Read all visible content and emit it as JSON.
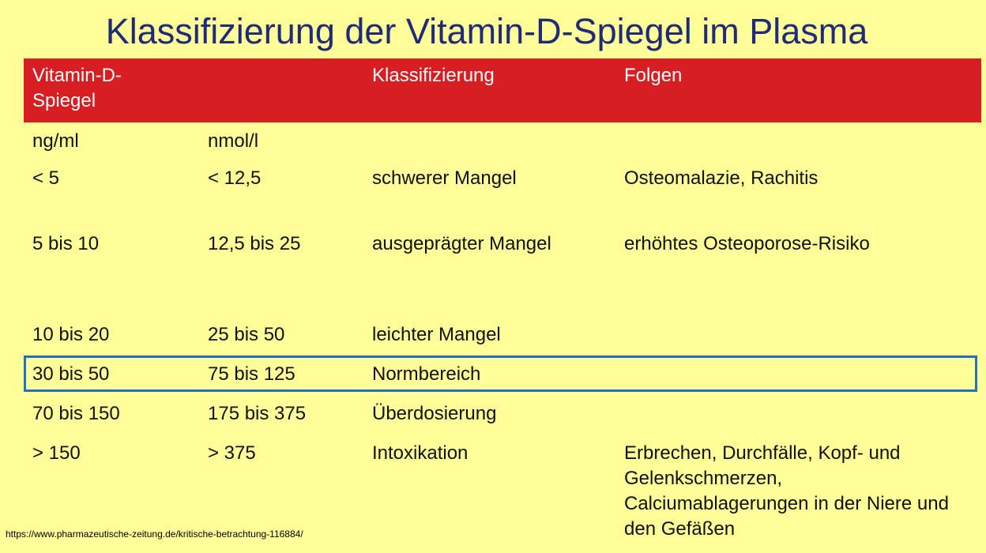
{
  "title": "Klassifizierung der Vitamin-D-Spiegel im Plasma",
  "table": {
    "header": {
      "col1": "Vitamin-D-Spiegel",
      "col3": "Klassifizierung",
      "col4": "Folgen"
    },
    "units": {
      "ngml": "ng/ml",
      "nmoll": "nmol/l"
    },
    "rows": [
      {
        "ngml": "< 5",
        "nmoll": "< 12,5",
        "klassifizierung": "schwerer Mangel",
        "folgen": "Osteomalazie, Rachitis"
      },
      {
        "ngml": "5 bis 10",
        "nmoll": "12,5 bis 25",
        "klassifizierung": "ausgeprägter Mangel",
        "folgen": "erhöhtes Osteoporose-Risiko"
      },
      {
        "ngml": "10 bis 20",
        "nmoll": "25 bis 50",
        "klassifizierung": "leichter Mangel",
        "folgen": ""
      },
      {
        "ngml": "30 bis 50",
        "nmoll": "75 bis 125",
        "klassifizierung": "Normbereich",
        "folgen": ""
      },
      {
        "ngml": "70 bis 150",
        "nmoll": "175 bis 375",
        "klassifizierung": "Überdosierung",
        "folgen": ""
      },
      {
        "ngml": "> 150",
        "nmoll": "> 375",
        "klassifizierung": "Intoxikation",
        "folgen": "Erbrechen, Durchfälle, Kopf- und Gelenkschmerzen, Calciumablagerungen in der Niere und den Gefäßen"
      }
    ]
  },
  "source": "https://www.pharmazeutische-zeitung.de/kritische-betrachtung-116884/",
  "colors": {
    "background": "#fffe99",
    "title": "#1f2a78",
    "header": "#d71f23",
    "highlight_border": "#1f73b7"
  }
}
